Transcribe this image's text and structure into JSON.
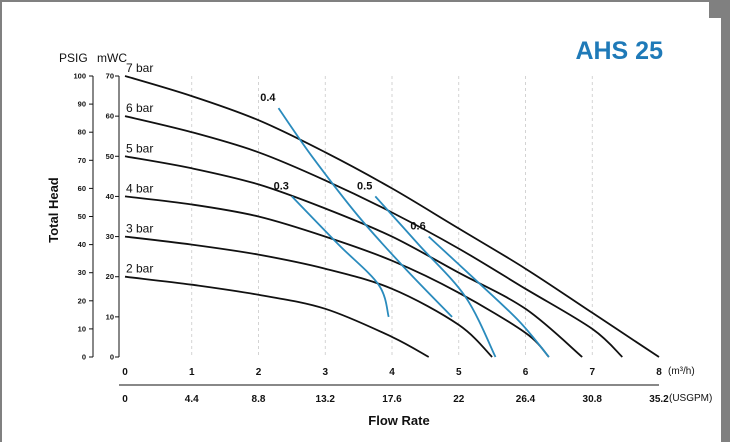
{
  "chart_data": {
    "type": "line",
    "title": "AHS 25",
    "xlabel": "Flow Rate",
    "ylabel": "Total Head",
    "x_unit_primary": "(m³/h)",
    "x_unit_secondary": "(USGPM)",
    "y_unit_left": "PSIG",
    "y_unit_right": "mWC",
    "xlim": [
      0,
      8
    ],
    "ylim": [
      0,
      70
    ],
    "x_ticks": [
      "0",
      "1",
      "2",
      "3",
      "4",
      "5",
      "6",
      "7",
      "8"
    ],
    "x_ticks_secondary": [
      "0",
      "4.4",
      "8.8",
      "13.2",
      "17.6",
      "22",
      "26.4",
      "30.8",
      "35.2"
    ],
    "y_ticks_mwc": [
      "0",
      "10",
      "20",
      "30",
      "40",
      "50",
      "60",
      "70"
    ],
    "y_ticks_psig": [
      "0",
      "10",
      "20",
      "30",
      "40",
      "50",
      "60",
      "70",
      "80",
      "90",
      "100"
    ],
    "grid": "vertical dashed",
    "air_pressure_curves": [
      {
        "name": "7 bar",
        "points": [
          [
            0,
            70
          ],
          [
            1,
            65
          ],
          [
            2,
            59
          ],
          [
            3,
            51
          ],
          [
            4,
            42
          ],
          [
            5,
            32
          ],
          [
            6,
            22
          ],
          [
            7,
            11
          ],
          [
            8,
            0
          ]
        ]
      },
      {
        "name": "6 bar",
        "points": [
          [
            0,
            60
          ],
          [
            1,
            56
          ],
          [
            2,
            51
          ],
          [
            3,
            44
          ],
          [
            4,
            36
          ],
          [
            5,
            27
          ],
          [
            6,
            17
          ],
          [
            7,
            7
          ],
          [
            7.45,
            0
          ]
        ]
      },
      {
        "name": "5 bar",
        "points": [
          [
            0,
            50
          ],
          [
            1,
            47
          ],
          [
            2,
            43
          ],
          [
            3,
            37
          ],
          [
            4,
            30
          ],
          [
            5,
            21
          ],
          [
            6,
            12
          ],
          [
            6.85,
            0
          ]
        ]
      },
      {
        "name": "4 bar",
        "points": [
          [
            0,
            40
          ],
          [
            1,
            38
          ],
          [
            2,
            35
          ],
          [
            3,
            30
          ],
          [
            4,
            24
          ],
          [
            5,
            16
          ],
          [
            6,
            6
          ],
          [
            6.35,
            0
          ]
        ]
      },
      {
        "name": "3 bar",
        "points": [
          [
            0,
            30
          ],
          [
            1,
            28
          ],
          [
            2,
            25.5
          ],
          [
            3,
            22
          ],
          [
            4,
            17
          ],
          [
            5,
            8
          ],
          [
            5.5,
            0
          ]
        ]
      },
      {
        "name": "2 bar",
        "points": [
          [
            0,
            20
          ],
          [
            1,
            18
          ],
          [
            2,
            15.5
          ],
          [
            3,
            12
          ],
          [
            4,
            5
          ],
          [
            4.55,
            0
          ]
        ]
      }
    ],
    "air_consumption_curves": [
      {
        "name": "0.3",
        "color": "#2a8bbd",
        "points": [
          [
            2.5,
            40
          ],
          [
            3.2,
            28
          ],
          [
            3.8,
            18
          ],
          [
            3.95,
            10
          ]
        ]
      },
      {
        "name": "0.4",
        "color": "#2a8bbd",
        "points": [
          [
            2.3,
            62
          ],
          [
            2.8,
            50
          ],
          [
            3.5,
            35
          ],
          [
            4.2,
            22
          ],
          [
            4.9,
            10
          ]
        ]
      },
      {
        "name": "0.5",
        "color": "#2a8bbd",
        "points": [
          [
            3.75,
            40
          ],
          [
            4.4,
            28
          ],
          [
            5.1,
            15
          ],
          [
            5.55,
            0
          ]
        ]
      },
      {
        "name": "0.6",
        "color": "#2a8bbd",
        "points": [
          [
            4.55,
            30
          ],
          [
            5.2,
            20
          ],
          [
            5.9,
            9
          ],
          [
            6.35,
            0
          ]
        ]
      }
    ]
  }
}
